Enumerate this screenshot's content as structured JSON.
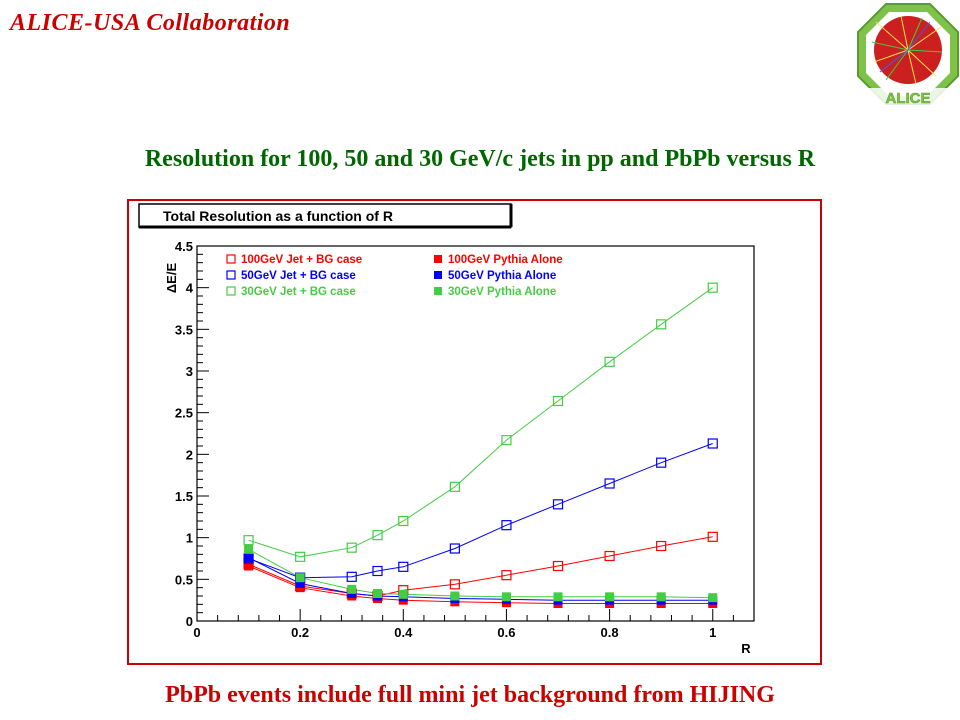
{
  "header": {
    "collaboration": "ALICE-USA Collaboration",
    "logo_label": "ALICE"
  },
  "headline": "Resolution for 100, 50 and 30 GeV/c jets in pp and PbPb versus R",
  "footline": "PbPb events include full mini jet background from HIJING",
  "chart_data": {
    "type": "line",
    "title": "Total Resolution as a function of R",
    "xlabel": "R",
    "ylabel": "ΔE/E",
    "xlim": [
      0,
      1.08
    ],
    "ylim": [
      0,
      4.5
    ],
    "xticks": [
      "0",
      "0.2",
      "0.4",
      "0.6",
      "0.8",
      "1"
    ],
    "yticks": [
      "0",
      "0.5",
      "1",
      "1.5",
      "2",
      "2.5",
      "3",
      "3.5",
      "4",
      "4.5"
    ],
    "legend": "top-left",
    "grid": false,
    "series": [
      {
        "name": "100GeV Jet + BG case",
        "color": "#ff0000",
        "marker": "open-square",
        "points": [
          [
            0.1,
            0.68
          ],
          [
            0.2,
            0.42
          ],
          [
            0.3,
            0.33
          ],
          [
            0.35,
            0.3
          ],
          [
            0.4,
            0.37
          ],
          [
            0.5,
            0.44
          ],
          [
            0.6,
            0.55
          ],
          [
            0.7,
            0.66
          ],
          [
            0.8,
            0.78
          ],
          [
            0.9,
            0.9
          ],
          [
            1.0,
            1.01
          ]
        ]
      },
      {
        "name": "100GeV Pythia Alone",
        "color": "#ff0000",
        "marker": "filled-square",
        "points": [
          [
            0.1,
            0.66
          ],
          [
            0.2,
            0.4
          ],
          [
            0.3,
            0.3
          ],
          [
            0.35,
            0.27
          ],
          [
            0.4,
            0.25
          ],
          [
            0.5,
            0.23
          ],
          [
            0.6,
            0.22
          ],
          [
            0.7,
            0.21
          ],
          [
            0.8,
            0.21
          ],
          [
            0.9,
            0.21
          ],
          [
            1.0,
            0.21
          ]
        ]
      },
      {
        "name": "50GeV Jet + BG case",
        "color": "#0000ff",
        "marker": "open-square",
        "points": [
          [
            0.1,
            0.75
          ],
          [
            0.2,
            0.52
          ],
          [
            0.3,
            0.53
          ],
          [
            0.35,
            0.6
          ],
          [
            0.4,
            0.65
          ],
          [
            0.5,
            0.87
          ],
          [
            0.6,
            1.15
          ],
          [
            0.7,
            1.4
          ],
          [
            0.8,
            1.65
          ],
          [
            0.9,
            1.9
          ],
          [
            1.0,
            2.13
          ]
        ]
      },
      {
        "name": "50GeV Pythia Alone",
        "color": "#0000ff",
        "marker": "filled-square",
        "points": [
          [
            0.1,
            0.76
          ],
          [
            0.2,
            0.45
          ],
          [
            0.3,
            0.33
          ],
          [
            0.35,
            0.3
          ],
          [
            0.4,
            0.29
          ],
          [
            0.5,
            0.27
          ],
          [
            0.6,
            0.26
          ],
          [
            0.7,
            0.25
          ],
          [
            0.8,
            0.25
          ],
          [
            0.9,
            0.25
          ],
          [
            1.0,
            0.25
          ]
        ]
      },
      {
        "name": "30GeV Jet + BG case",
        "color": "#44cc44",
        "marker": "open-square",
        "points": [
          [
            0.1,
            0.97
          ],
          [
            0.2,
            0.77
          ],
          [
            0.3,
            0.88
          ],
          [
            0.35,
            1.03
          ],
          [
            0.4,
            1.2
          ],
          [
            0.5,
            1.61
          ],
          [
            0.6,
            2.17
          ],
          [
            0.7,
            2.64
          ],
          [
            0.8,
            3.11
          ],
          [
            0.9,
            3.56
          ],
          [
            1.0,
            4.0
          ]
        ]
      },
      {
        "name": "30GeV Pythia Alone",
        "color": "#44cc44",
        "marker": "filled-square",
        "points": [
          [
            0.1,
            0.86
          ],
          [
            0.2,
            0.52
          ],
          [
            0.3,
            0.38
          ],
          [
            0.35,
            0.33
          ],
          [
            0.4,
            0.32
          ],
          [
            0.5,
            0.3
          ],
          [
            0.6,
            0.29
          ],
          [
            0.7,
            0.29
          ],
          [
            0.8,
            0.29
          ],
          [
            0.9,
            0.29
          ],
          [
            1.0,
            0.28
          ]
        ]
      }
    ]
  }
}
